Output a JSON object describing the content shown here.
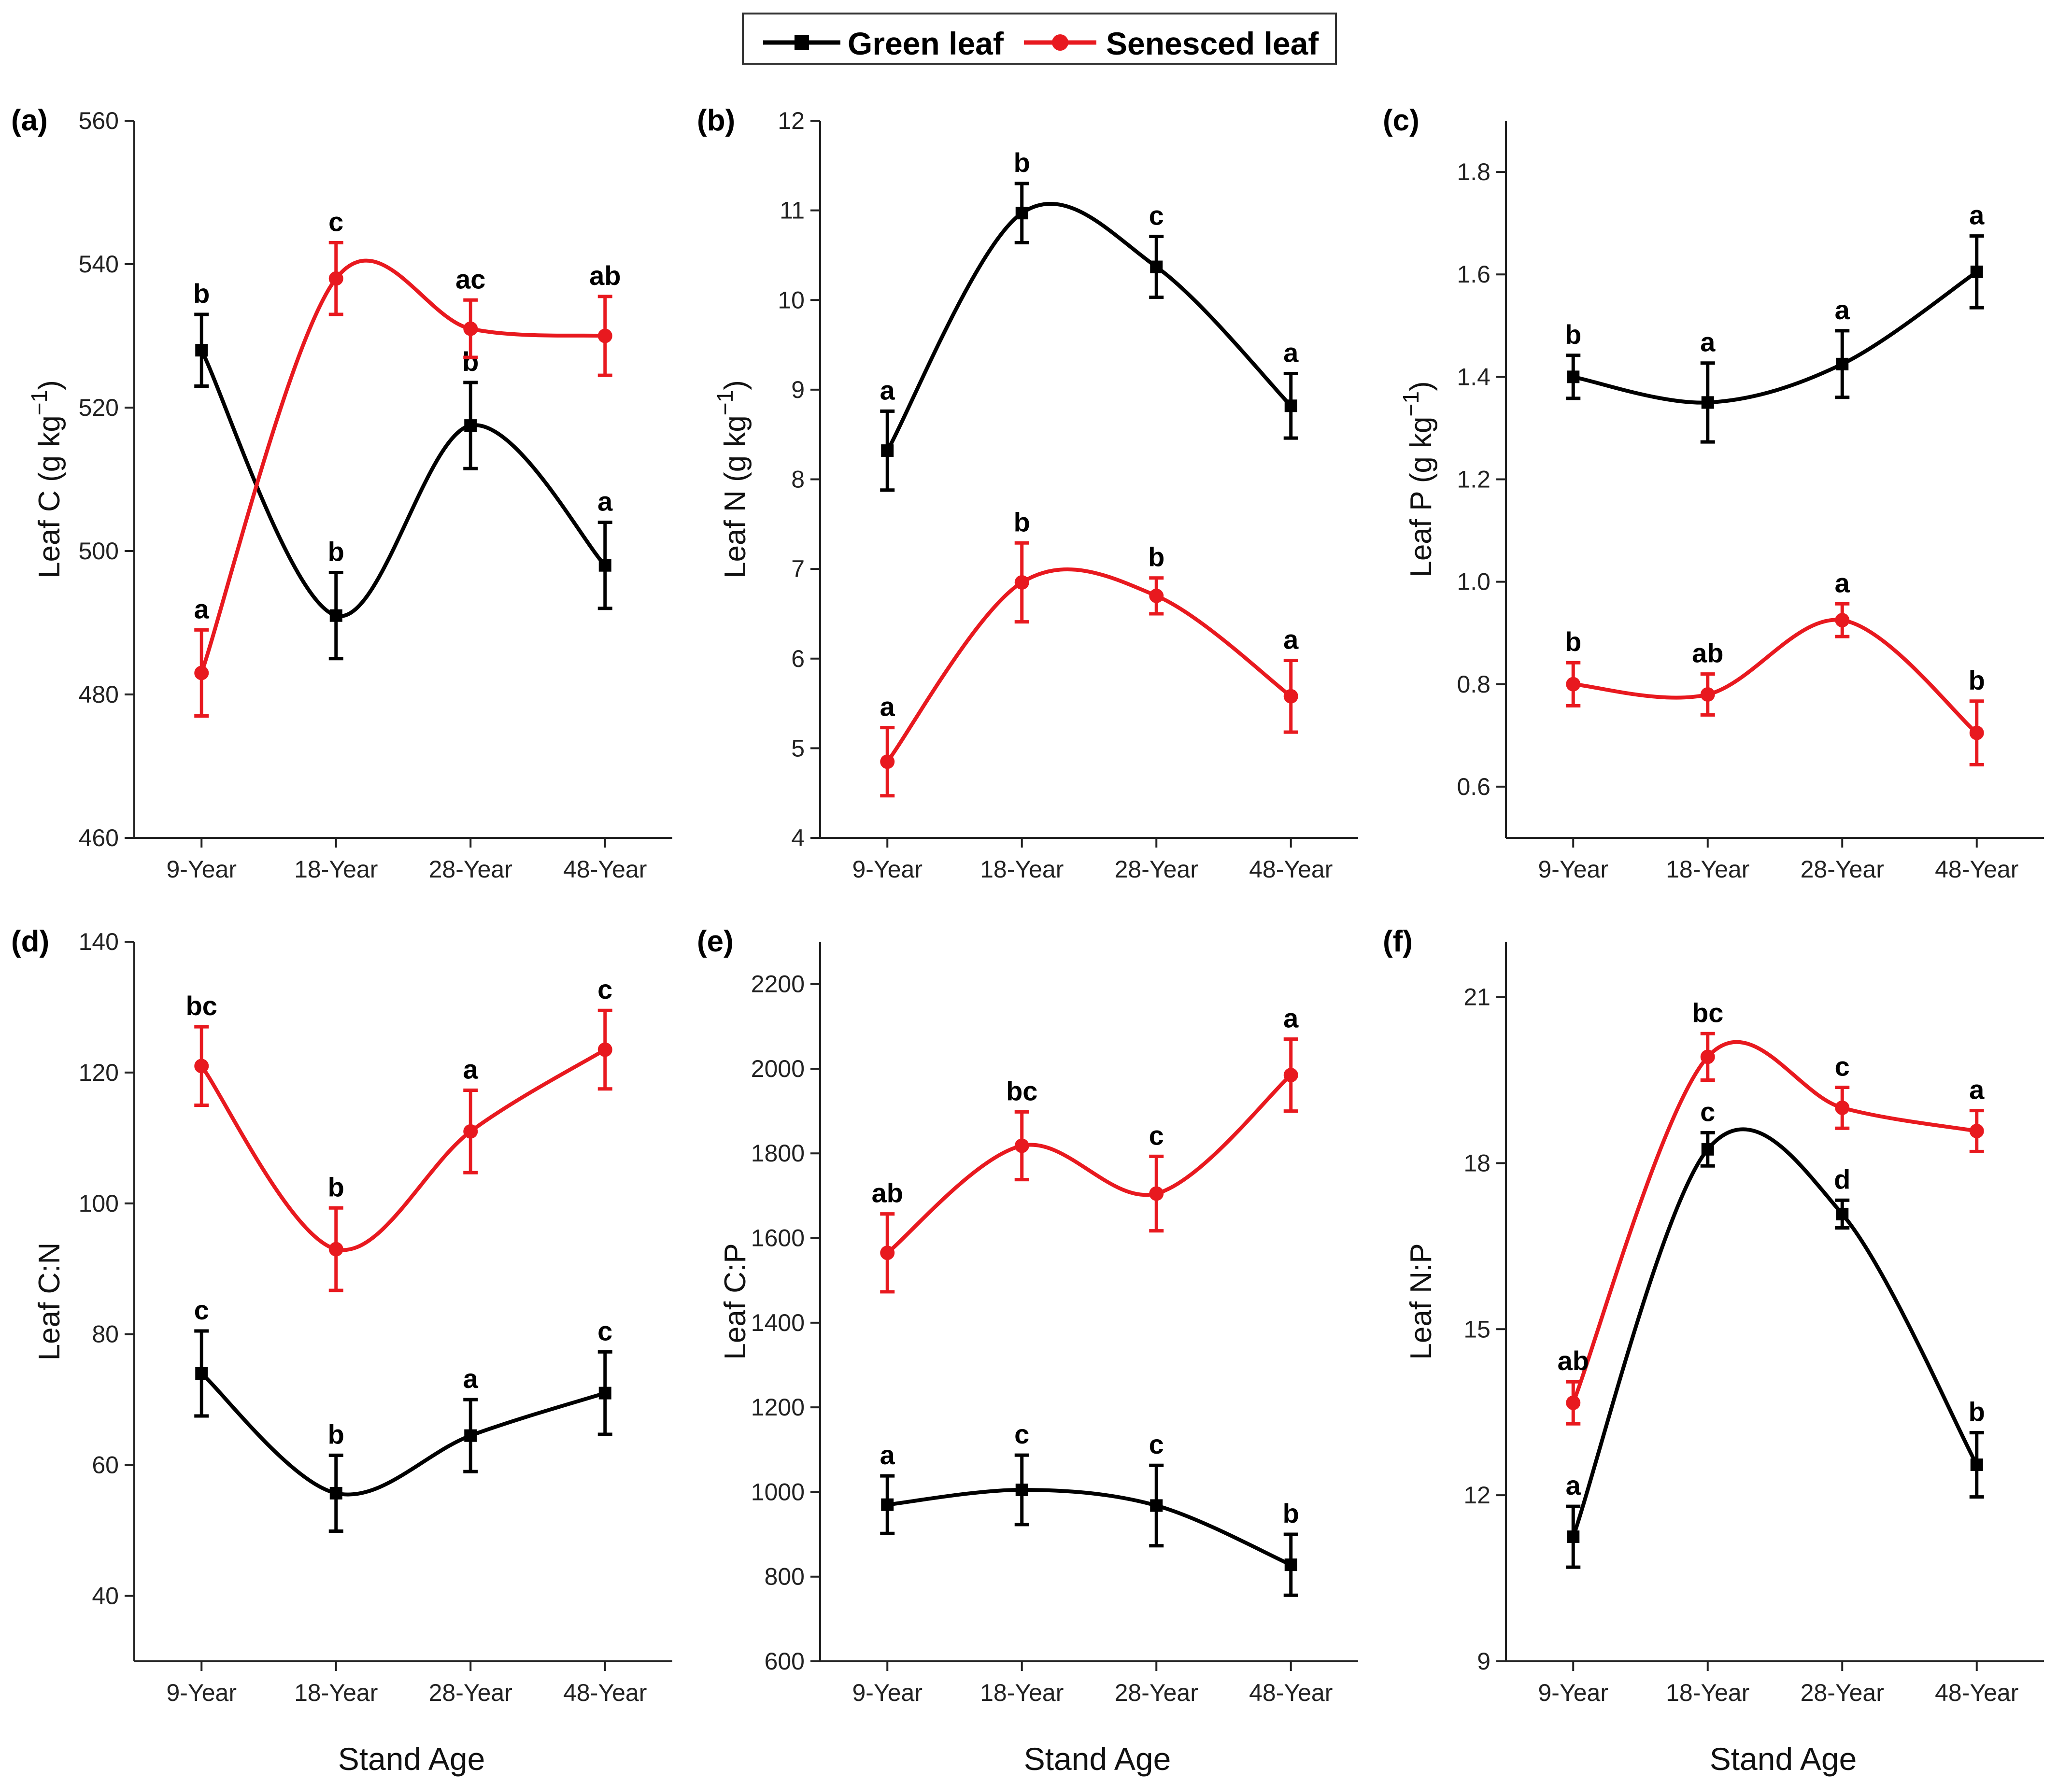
{
  "colors": {
    "green_leaf": "#000000",
    "senesced_leaf": "#e8191f",
    "axis": "#222222"
  },
  "legend": {
    "green": "Green leaf",
    "senesced": "Senesced leaf"
  },
  "xlabel": "Stand Age",
  "chart_data": [
    {
      "type": "line",
      "panel": "(a)",
      "ylabel": "Leaf C (g kg",
      "ylabel_sup": "−1",
      "ylabel_close": ")",
      "categories": [
        "9-Year",
        "18-Year",
        "28-Year",
        "48-Year"
      ],
      "ylim": [
        460,
        560
      ],
      "yticks": [
        "460",
        "480",
        "500",
        "520",
        "540",
        "560"
      ],
      "series": [
        {
          "name": "Green leaf",
          "values": [
            528,
            491,
            517.5,
            498
          ],
          "errors": [
            5,
            6,
            6,
            6
          ],
          "sig": [
            "b",
            "b",
            "b",
            "a"
          ]
        },
        {
          "name": "Senesced leaf",
          "values": [
            483,
            538,
            531,
            530
          ],
          "errors": [
            6,
            5,
            4,
            5.5
          ],
          "sig": [
            "a",
            "c",
            "ac",
            "ab"
          ]
        }
      ]
    },
    {
      "type": "line",
      "panel": "(b)",
      "ylabel": "Leaf N (g kg",
      "ylabel_sup": "−1",
      "ylabel_close": ")",
      "categories": [
        "9-Year",
        "18-Year",
        "28-Year",
        "48-Year"
      ],
      "ylim": [
        4,
        12
      ],
      "yticks": [
        "4",
        "5",
        "6",
        "7",
        "8",
        "9",
        "10",
        "11",
        "12"
      ],
      "series": [
        {
          "name": "Green leaf",
          "values": [
            8.32,
            10.97,
            10.37,
            8.82
          ],
          "errors": [
            0.44,
            0.33,
            0.34,
            0.36
          ],
          "sig": [
            "a",
            "b",
            "c",
            "a"
          ]
        },
        {
          "name": "Senesced leaf",
          "values": [
            4.85,
            6.85,
            6.7,
            5.58
          ],
          "errors": [
            0.38,
            0.44,
            0.2,
            0.4
          ],
          "sig": [
            "a",
            "b",
            "b",
            "a"
          ]
        }
      ]
    },
    {
      "type": "line",
      "panel": "(c)",
      "ylabel": "Leaf P (g kg",
      "ylabel_sup": "−1",
      "ylabel_close": ")",
      "categories": [
        "9-Year",
        "18-Year",
        "28-Year",
        "48-Year"
      ],
      "ylim": [
        0.5,
        1.9
      ],
      "yticks": [
        "0.6",
        "0.8",
        "1.0",
        "1.2",
        "1.4",
        "1.6",
        "1.8"
      ],
      "series": [
        {
          "name": "Green leaf",
          "values": [
            1.4,
            1.35,
            1.425,
            1.605
          ],
          "errors": [
            0.042,
            0.077,
            0.065,
            0.07
          ],
          "sig": [
            "b",
            "a",
            "a",
            "a"
          ]
        },
        {
          "name": "Senesced leaf",
          "values": [
            0.8,
            0.78,
            0.925,
            0.705
          ],
          "errors": [
            0.042,
            0.04,
            0.032,
            0.062
          ],
          "sig": [
            "b",
            "ab",
            "a",
            "b"
          ]
        }
      ]
    },
    {
      "type": "line",
      "panel": "(d)",
      "ylabel": "Leaf C:N",
      "categories": [
        "9-Year",
        "18-Year",
        "28-Year",
        "48-Year"
      ],
      "ylim": [
        30,
        140
      ],
      "yticks": [
        "40",
        "60",
        "80",
        "100",
        "120",
        "140"
      ],
      "series": [
        {
          "name": "Green leaf",
          "values": [
            74,
            55.7,
            64.5,
            71
          ],
          "errors": [
            6.5,
            5.8,
            5.5,
            6.3
          ],
          "sig": [
            "c",
            "b",
            "a",
            "c"
          ]
        },
        {
          "name": "Senesced leaf",
          "values": [
            121,
            93,
            111,
            123.5
          ],
          "errors": [
            6,
            6.3,
            6.3,
            6
          ],
          "sig": [
            "bc",
            "b",
            "a",
            "c"
          ]
        }
      ]
    },
    {
      "type": "line",
      "panel": "(e)",
      "ylabel": "Leaf C:P",
      "categories": [
        "9-Year",
        "18-Year",
        "28-Year",
        "48-Year"
      ],
      "ylim": [
        600,
        2300
      ],
      "yticks": [
        "600",
        "800",
        "1000",
        "1200",
        "1400",
        "1600",
        "1800",
        "2000",
        "2200"
      ],
      "series": [
        {
          "name": "Green leaf",
          "values": [
            970,
            1005,
            968,
            828
          ],
          "errors": [
            68,
            82,
            95,
            72
          ],
          "sig": [
            "a",
            "c",
            "c",
            "b"
          ]
        },
        {
          "name": "Senesced leaf",
          "values": [
            1565,
            1818,
            1705,
            1985
          ],
          "errors": [
            92,
            80,
            88,
            85
          ],
          "sig": [
            "ab",
            "bc",
            "c",
            "a"
          ]
        }
      ]
    },
    {
      "type": "line",
      "panel": "(f)",
      "ylabel": "Leaf N:P",
      "categories": [
        "9-Year",
        "18-Year",
        "28-Year",
        "48-Year"
      ],
      "ylim": [
        9,
        22
      ],
      "yticks": [
        "9",
        "12",
        "15",
        "18",
        "21"
      ],
      "series": [
        {
          "name": "Green leaf",
          "values": [
            11.25,
            18.25,
            17.08,
            12.55
          ],
          "errors": [
            0.55,
            0.3,
            0.25,
            0.58
          ],
          "sig": [
            "a",
            "c",
            "d",
            "b"
          ]
        },
        {
          "name": "Senesced leaf",
          "values": [
            13.67,
            19.92,
            19.0,
            18.58
          ],
          "errors": [
            0.38,
            0.42,
            0.37,
            0.37
          ],
          "sig": [
            "ab",
            "bc",
            "c",
            "a"
          ]
        }
      ]
    }
  ]
}
